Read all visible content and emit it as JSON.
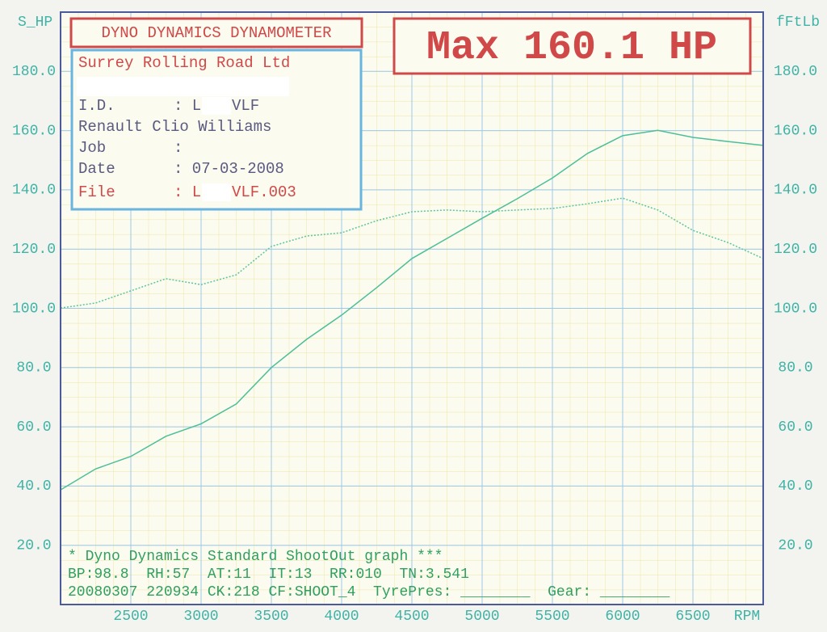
{
  "chart_data": {
    "type": "line",
    "header": "DYNO DYNAMICS DYNAMOMETER",
    "headline": "Max 160.1 HP",
    "company": "Surrey Rolling Road Ltd",
    "info_rows": [
      [
        "I.D.",
        ": L",
        "VLF"
      ],
      [
        "Renault Clio Williams"
      ],
      [
        "Job",
        ":"
      ],
      [
        "Date",
        ": 07-03-2008"
      ],
      [
        "File",
        ": L",
        "VLF.003"
      ]
    ],
    "footer": [
      "* Dyno Dynamics Standard ShootOut graph ***",
      "BP:98.8  RH:57  AT:11  IT:13  RR:010  TN:3.541",
      "20080307 220934 CK:218 CF:SHOOT_4  TyrePres: ________  Gear: ________"
    ],
    "ylabel": "S_HP",
    "y2label": "fFtLb",
    "xlabel": "RPM",
    "x": [
      2000,
      2250,
      2500,
      2750,
      3000,
      3250,
      3500,
      3750,
      4000,
      4250,
      4500,
      4750,
      5000,
      5250,
      5500,
      5750,
      6000,
      6250,
      6500,
      6750,
      7000
    ],
    "series": [
      {
        "color": "#4cbf9a",
        "values": [
          38.7,
          45.8,
          50,
          56.8,
          61,
          67.7,
          80,
          89.5,
          97.7,
          107,
          116.8,
          123.6,
          130.4,
          137,
          144,
          152.3,
          158.3,
          160.1,
          157.7,
          156.3,
          155
        ]
      },
      {
        "color": "#5cc59e",
        "axis": "y2",
        "dashed": true,
        "values": [
          100.1,
          101.8,
          105.9,
          110,
          108,
          111.3,
          120.9,
          124.4,
          125.5,
          129.6,
          132.6,
          133.2,
          132.6,
          133.2,
          133.7,
          135.3,
          137.2,
          133.2,
          126.3,
          122.2,
          116.8
        ]
      }
    ],
    "xlim": [
      2000,
      7000
    ],
    "xticks": [
      2500,
      3000,
      3500,
      4000,
      4500,
      5000,
      5500,
      6000,
      6500
    ],
    "ylim": [
      0,
      200
    ],
    "yticks": [
      {
        "value": 20,
        "label": "20.0"
      },
      {
        "value": 40,
        "label": "40.0"
      },
      {
        "value": 60,
        "label": "60.0"
      },
      {
        "value": 80,
        "label": "80.0"
      },
      {
        "value": 100,
        "label": "100.0"
      },
      {
        "value": 120,
        "label": "120.0"
      },
      {
        "value": 140,
        "label": "140.0"
      },
      {
        "value": 160,
        "label": "160.0"
      },
      {
        "value": 180,
        "label": "180.0"
      }
    ],
    "y2lim": [
      0,
      200
    ],
    "y2ticks": [
      {
        "value": 20,
        "label": "20.0"
      },
      {
        "value": 40,
        "label": "40.0"
      },
      {
        "value": 60,
        "label": "60.0"
      },
      {
        "value": 80,
        "label": "80.0"
      },
      {
        "value": 100,
        "label": "100.0"
      },
      {
        "value": 120,
        "label": "120.0"
      },
      {
        "value": 140,
        "label": "140.0"
      },
      {
        "value": 160,
        "label": "160.0"
      },
      {
        "value": 180,
        "label": "180.0"
      }
    ],
    "grid": true
  }
}
